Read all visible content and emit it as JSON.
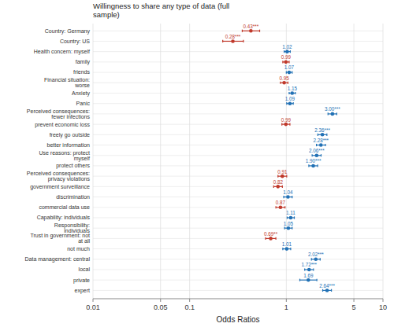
{
  "chart_data": {
    "type": "forest",
    "title": "Willingness to share any type of data (full\nsample)",
    "x_label": "Odds Ratios",
    "categories": [
      "Country: Germany",
      "Country: US",
      "Health concern: myself",
      "family",
      "friends",
      "Financial situation:\nworse",
      "Anxiety",
      "Panic",
      "Perceived consequences:\nfewer infections",
      "prevent economic loss",
      "freely go outside",
      "better information",
      "Use reasons: protect\nmyself",
      "protect others",
      "Perceived consequences:\nprivacy violations",
      "government surveillance",
      "discrimination",
      "commercial data use",
      "Capability: individuals",
      "Responsibility:\nindividuals",
      "Trust in government: not\nat all",
      "not much",
      "Data management: central",
      "local",
      "private",
      "expert"
    ],
    "values": [
      0.43,
      0.28,
      1.02,
      0.99,
      1.07,
      0.95,
      1.15,
      1.09,
      3.0,
      0.99,
      2.36,
      2.28,
      2.06,
      1.9,
      0.91,
      0.82,
      1.04,
      0.87,
      1.11,
      1.05,
      0.69,
      1.01,
      2.02,
      1.72,
      1.69,
      2.64
    ],
    "ci_low": [
      0.35,
      0.22,
      0.95,
      0.92,
      1.0,
      0.87,
      1.07,
      1.01,
      2.7,
      0.9,
      2.12,
      2.05,
      1.85,
      1.71,
      0.82,
      0.74,
      0.94,
      0.78,
      1.02,
      0.96,
      0.61,
      0.92,
      1.82,
      1.55,
      1.38,
      2.38
    ],
    "ci_high": [
      0.53,
      0.36,
      1.1,
      1.07,
      1.15,
      1.04,
      1.24,
      1.18,
      3.33,
      1.09,
      2.63,
      2.54,
      2.29,
      2.11,
      1.01,
      0.91,
      1.15,
      0.97,
      1.21,
      1.15,
      0.78,
      1.11,
      2.24,
      1.91,
      2.07,
      2.93
    ],
    "value_labels": [
      "0.43***",
      "0.28***",
      "1.02",
      "0.99",
      "1.07",
      "0.95",
      "1.15",
      "1.09",
      "3.00***",
      "0.99",
      "2.36***",
      "2.28***",
      "2.06***",
      "1.90***",
      "0.91",
      "0.82",
      "1.04",
      "0.87",
      "1.11",
      "1.05",
      "0.69**",
      "1.01",
      "2.02***",
      "1.72***",
      "1.69",
      "2.64***"
    ],
    "data_labels": true,
    "colors": [
      "#c0392b",
      "#c0392b",
      "#2171b5",
      "#c0392b",
      "#2171b5",
      "#c0392b",
      "#2171b5",
      "#2171b5",
      "#2171b5",
      "#c0392b",
      "#2171b5",
      "#2171b5",
      "#2171b5",
      "#2171b5",
      "#c0392b",
      "#c0392b",
      "#2171b5",
      "#c0392b",
      "#2171b5",
      "#2171b5",
      "#c0392b",
      "#2171b5",
      "#2171b5",
      "#2171b5",
      "#2171b5",
      "#2171b5"
    ],
    "log": "x",
    "xlim": [
      0.01,
      10
    ],
    "xticks": [
      0.01,
      0.05,
      0.1,
      1,
      5,
      10
    ],
    "grid": true
  }
}
